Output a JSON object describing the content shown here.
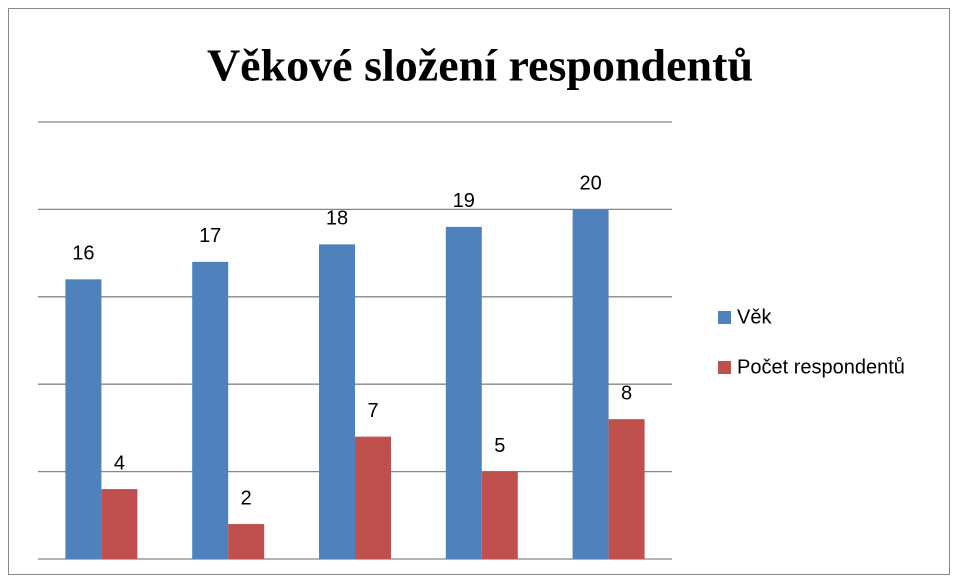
{
  "chart_data": {
    "type": "bar",
    "title": "Věkové složení respondentů",
    "categories": [
      null,
      null,
      null,
      null,
      null
    ],
    "series": [
      {
        "name": "Věk",
        "color": "#4f81bd",
        "values": [
          16,
          17,
          18,
          19,
          20
        ]
      },
      {
        "name": "Počet respondentů",
        "color": "#c0504d",
        "values": [
          4,
          2,
          7,
          5,
          8
        ]
      }
    ],
    "ylim": [
      0,
      25
    ],
    "yticks": [
      0,
      5,
      10,
      15,
      20,
      25
    ],
    "grid": true,
    "legend": "right"
  }
}
